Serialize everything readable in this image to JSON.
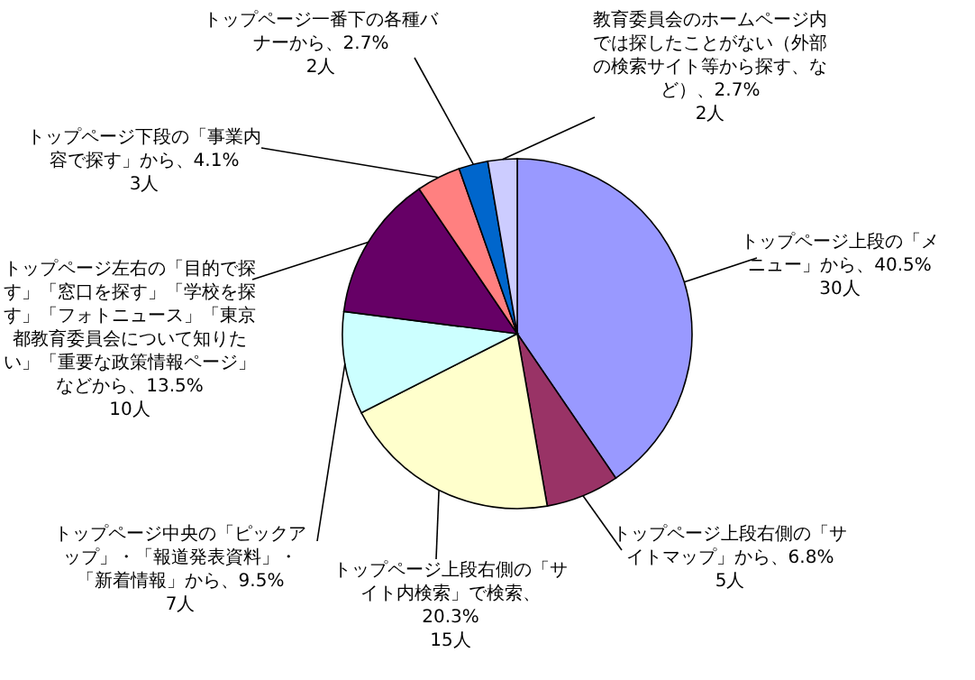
{
  "chart_data": {
    "type": "pie",
    "categories": [
      "トップページ上段の「メニュー」から",
      "トップページ上段右側の「サイトマップ」から",
      "トップページ上段右側の「サイト内検索」で検索",
      "トップページ中央の「ピックアップ」・「報道発表資料」・「新着情報」から",
      "トップページ左右の「目的で探す」「窓口を探す」「学校を探す」「フォトニュース」「東京都教育委員会について知りたい」「重要な政策情報ページ」などから",
      "トップページ下段の「事業内容で探す」から",
      "トップページ一番下の各種バナーから",
      "教育委員会のホームページ内では探したことがない（外部の検索サイト等から探す、など）"
    ],
    "values": [
      40.5,
      6.8,
      20.3,
      9.5,
      13.5,
      4.1,
      2.7,
      2.7
    ],
    "value_labels": [
      "、40.5%\n30人",
      "、6.8%\n5人",
      "、20.3%\n15人",
      "、9.5%\n7人",
      "、13.5%\n10人",
      "、4.1%\n3人",
      "、2.7%\n2人",
      "、2.7%\n2人"
    ],
    "colors": [
      "#9999ff",
      "#993366",
      "#ffffcc",
      "#ccffff",
      "#660066",
      "#ff8080",
      "#0066cc",
      "#ccccff"
    ]
  }
}
